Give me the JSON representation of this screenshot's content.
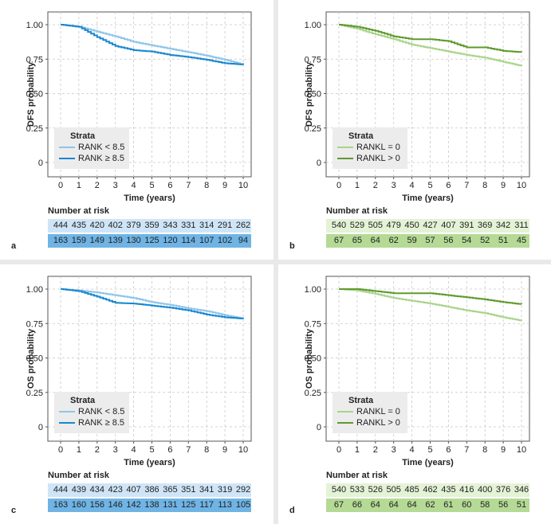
{
  "chart_data": [
    {
      "type": "line",
      "panel_label": "a",
      "title": "",
      "xlabel": "Time (years)",
      "ylabel": "DFS probability",
      "xlim": [
        0,
        10
      ],
      "ylim": [
        0,
        1
      ],
      "xticks": [
        "0",
        "1",
        "2",
        "3",
        "4",
        "5",
        "6",
        "7",
        "8",
        "9",
        "10"
      ],
      "yticks": [
        "0",
        "0.25",
        "0.50",
        "0.75",
        "1.00"
      ],
      "grid": true,
      "legend": {
        "title": "Strata",
        "position": "bottom-left",
        "labels": [
          "RANK < 8.5",
          "RANK ≥ 8.5"
        ]
      },
      "series": [
        {
          "name": "RANK < 8.5",
          "color": "#8ec4ea",
          "x": [
            0,
            1,
            2,
            3,
            4,
            5,
            6,
            7,
            8,
            9,
            10
          ],
          "y": [
            1.0,
            0.985,
            0.95,
            0.915,
            0.875,
            0.85,
            0.825,
            0.8,
            0.775,
            0.745,
            0.71
          ]
        },
        {
          "name": "RANK ≥ 8.5",
          "color": "#1a87cf",
          "x": [
            0,
            1,
            2,
            3,
            4,
            5,
            6,
            7,
            8,
            9,
            10
          ],
          "y": [
            1.0,
            0.985,
            0.91,
            0.845,
            0.815,
            0.805,
            0.78,
            0.765,
            0.745,
            0.72,
            0.71
          ]
        }
      ],
      "risk_table": {
        "title": "Number at risk",
        "rows": [
          {
            "color": "#cfe5f7",
            "values": [
              "444",
              "435",
              "420",
              "402",
              "379",
              "359",
              "343",
              "331",
              "314",
              "291",
              "262"
            ]
          },
          {
            "color": "#6fb4e4",
            "values": [
              "163",
              "159",
              "149",
              "139",
              "130",
              "125",
              "120",
              "114",
              "107",
              "102",
              "94"
            ]
          }
        ]
      }
    },
    {
      "type": "line",
      "panel_label": "b",
      "title": "",
      "xlabel": "Time (years)",
      "ylabel": "DFS probability",
      "xlim": [
        0,
        10
      ],
      "ylim": [
        0,
        1
      ],
      "xticks": [
        "0",
        "1",
        "2",
        "3",
        "4",
        "5",
        "6",
        "7",
        "8",
        "9",
        "10"
      ],
      "yticks": [
        "0",
        "0.25",
        "0.50",
        "0.75",
        "1.00"
      ],
      "grid": true,
      "legend": {
        "title": "Strata",
        "position": "bottom-left",
        "labels": [
          "RANKL = 0",
          "RANKL > 0"
        ]
      },
      "series": [
        {
          "name": "RANKL = 0",
          "color": "#a9d48a",
          "x": [
            0,
            1,
            2,
            3,
            4,
            5,
            6,
            7,
            8,
            9,
            10
          ],
          "y": [
            1.0,
            0.97,
            0.93,
            0.895,
            0.855,
            0.83,
            0.805,
            0.78,
            0.76,
            0.73,
            0.7
          ]
        },
        {
          "name": "RANKL > 0",
          "color": "#5f9a2e",
          "x": [
            0,
            1,
            2,
            3,
            4,
            5,
            6,
            7,
            8,
            9,
            10
          ],
          "y": [
            1.0,
            0.985,
            0.955,
            0.915,
            0.895,
            0.895,
            0.88,
            0.835,
            0.835,
            0.81,
            0.8
          ]
        }
      ],
      "risk_table": {
        "title": "Number at risk",
        "rows": [
          {
            "color": "#e4f2d6",
            "values": [
              "540",
              "529",
              "505",
              "479",
              "450",
              "427",
              "407",
              "391",
              "369",
              "342",
              "311"
            ]
          },
          {
            "color": "#b4da95",
            "values": [
              "67",
              "65",
              "64",
              "62",
              "59",
              "57",
              "56",
              "54",
              "52",
              "51",
              "45"
            ]
          }
        ]
      }
    },
    {
      "type": "line",
      "panel_label": "c",
      "title": "",
      "xlabel": "Time (years)",
      "ylabel": "OS probability",
      "xlim": [
        0,
        10
      ],
      "ylim": [
        0,
        1
      ],
      "xticks": [
        "0",
        "1",
        "2",
        "3",
        "4",
        "5",
        "6",
        "7",
        "8",
        "9",
        "10"
      ],
      "yticks": [
        "0",
        "0.25",
        "0.50",
        "0.75",
        "1.00"
      ],
      "grid": true,
      "legend": {
        "title": "Strata",
        "position": "bottom-left",
        "labels": [
          "RANK < 8.5",
          "RANK ≥ 8.5"
        ]
      },
      "series": [
        {
          "name": "RANK < 8.5",
          "color": "#8ec4ea",
          "x": [
            0,
            1,
            2,
            3,
            4,
            5,
            6,
            7,
            8,
            9,
            10
          ],
          "y": [
            1.0,
            0.99,
            0.975,
            0.955,
            0.935,
            0.905,
            0.885,
            0.86,
            0.84,
            0.81,
            0.785
          ]
        },
        {
          "name": "RANK ≥ 8.5",
          "color": "#1a87cf",
          "x": [
            0,
            1,
            2,
            3,
            4,
            5,
            6,
            7,
            8,
            9,
            10
          ],
          "y": [
            1.0,
            0.985,
            0.945,
            0.9,
            0.895,
            0.88,
            0.865,
            0.845,
            0.815,
            0.795,
            0.785
          ]
        }
      ],
      "risk_table": {
        "title": "Number at risk",
        "rows": [
          {
            "color": "#cfe5f7",
            "values": [
              "444",
              "439",
              "434",
              "423",
              "407",
              "386",
              "365",
              "351",
              "341",
              "319",
              "292"
            ]
          },
          {
            "color": "#6fb4e4",
            "values": [
              "163",
              "160",
              "156",
              "146",
              "142",
              "138",
              "131",
              "125",
              "117",
              "113",
              "105"
            ]
          }
        ]
      }
    },
    {
      "type": "line",
      "panel_label": "d",
      "title": "",
      "xlabel": "Time (years)",
      "ylabel": "OS probability",
      "xlim": [
        0,
        10
      ],
      "ylim": [
        0,
        1
      ],
      "xticks": [
        "0",
        "1",
        "2",
        "3",
        "4",
        "5",
        "6",
        "7",
        "8",
        "9",
        "10"
      ],
      "yticks": [
        "0",
        "0.25",
        "0.50",
        "0.75",
        "1.00"
      ],
      "grid": true,
      "legend": {
        "title": "Strata",
        "position": "bottom-left",
        "labels": [
          "RANKL = 0",
          "RANKL > 0"
        ]
      },
      "series": [
        {
          "name": "RANKL = 0",
          "color": "#a9d48a",
          "x": [
            0,
            1,
            2,
            3,
            4,
            5,
            6,
            7,
            8,
            9,
            10
          ],
          "y": [
            1.0,
            0.99,
            0.965,
            0.935,
            0.915,
            0.895,
            0.87,
            0.845,
            0.825,
            0.795,
            0.77
          ]
        },
        {
          "name": "RANKL > 0",
          "color": "#5f9a2e",
          "x": [
            0,
            1,
            2,
            3,
            4,
            5,
            6,
            7,
            8,
            9,
            10
          ],
          "y": [
            1.0,
            1.0,
            0.985,
            0.97,
            0.97,
            0.97,
            0.955,
            0.94,
            0.925,
            0.905,
            0.89
          ]
        }
      ],
      "risk_table": {
        "title": "Number at risk",
        "rows": [
          {
            "color": "#e4f2d6",
            "values": [
              "540",
              "533",
              "526",
              "505",
              "485",
              "462",
              "435",
              "416",
              "400",
              "376",
              "346"
            ]
          },
          {
            "color": "#b4da95",
            "values": [
              "67",
              "66",
              "64",
              "64",
              "64",
              "62",
              "61",
              "60",
              "58",
              "56",
              "51"
            ]
          }
        ]
      }
    }
  ]
}
